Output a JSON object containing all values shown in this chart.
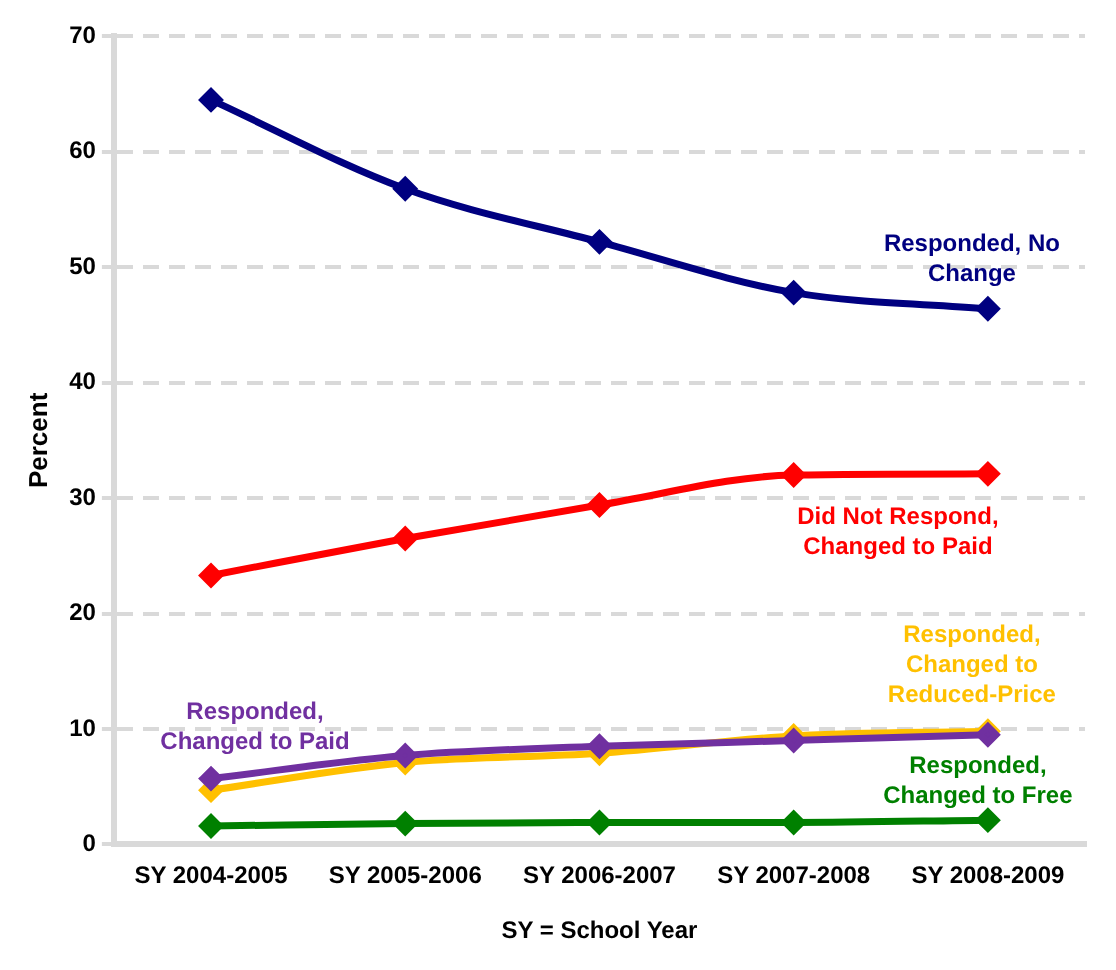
{
  "chart_data": {
    "type": "line",
    "xlabel": "SY = School Year",
    "ylabel": "Percent",
    "categories": [
      "SY 2004-2005",
      "SY 2005-2006",
      "SY 2006-2007",
      "SY 2007-2008",
      "SY 2008-2009"
    ],
    "series": [
      {
        "name": "Responded, No Change",
        "color": "#000080",
        "values": [
          64.5,
          56.8,
          52.2,
          47.8,
          46.4
        ]
      },
      {
        "name": "Did Not Respond, Changed to Paid",
        "color": "#ff0000",
        "values": [
          23.3,
          26.5,
          29.4,
          32.0,
          32.1
        ]
      },
      {
        "name": "Responded, Changed to Paid",
        "color": "#7030a0",
        "values": [
          5.7,
          7.7,
          8.5,
          9.0,
          9.5
        ]
      },
      {
        "name": "Responded, Changed to Reduced-Price",
        "color": "#ffc000",
        "values": [
          4.7,
          7.1,
          7.9,
          9.4,
          9.8
        ]
      },
      {
        "name": "Responded, Changed to Free",
        "color": "#008000",
        "values": [
          1.6,
          1.8,
          1.9,
          1.9,
          2.1
        ]
      }
    ],
    "ylim": [
      0,
      70
    ],
    "yticks": [
      0,
      10,
      20,
      30,
      40,
      50,
      60,
      70
    ],
    "grid": "y",
    "legend": false,
    "marker": "diamond",
    "line_style": "solid"
  }
}
